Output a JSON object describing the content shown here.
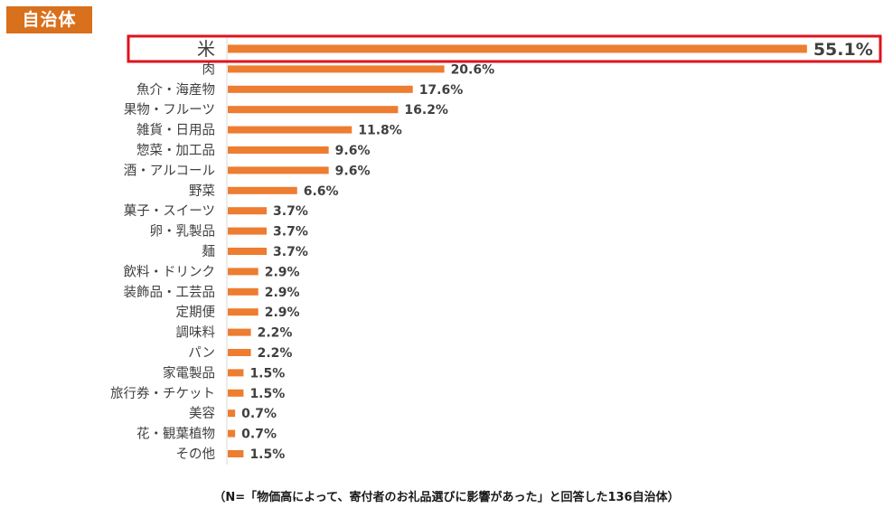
{
  "header": {
    "badge_label": "自治体"
  },
  "chart_data": {
    "type": "bar",
    "orientation": "horizontal",
    "categories": [
      "米",
      "肉",
      "魚介・海産物",
      "果物・フルーツ",
      "雑貨・日用品",
      "惣菜・加工品",
      "酒・アルコール",
      "野菜",
      "菓子・スイーツ",
      "卵・乳製品",
      "麺",
      "飲料・ドリンク",
      "装飾品・工芸品",
      "定期便",
      "調味料",
      "パン",
      "家電製品",
      "旅行券・チケット",
      "美容",
      "花・観葉植物",
      "その他"
    ],
    "values": [
      55.1,
      20.6,
      17.6,
      16.2,
      11.8,
      9.6,
      9.6,
      6.6,
      3.7,
      3.7,
      3.7,
      2.9,
      2.9,
      2.9,
      2.2,
      2.2,
      1.5,
      1.5,
      0.7,
      0.7,
      1.5
    ],
    "value_labels": [
      "55.1%",
      "20.6%",
      "17.6%",
      "16.2%",
      "11.8%",
      "9.6%",
      "9.6%",
      "6.6%",
      "3.7%",
      "3.7%",
      "3.7%",
      "2.9%",
      "2.9%",
      "2.9%",
      "2.2%",
      "2.2%",
      "1.5%",
      "1.5%",
      "0.7%",
      "0.7%",
      "1.5%"
    ],
    "highlight_index": 0,
    "bar_color": "#ed7d31",
    "highlight_color": "#e0121b",
    "grid": false,
    "legend": "none"
  },
  "footnote": "（N=「物価高によって、寄付者のお礼品選びに影響があった」と回答した136自治体）"
}
